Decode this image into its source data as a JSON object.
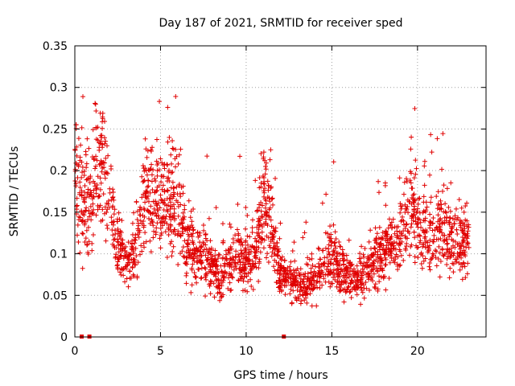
{
  "chart_data": {
    "type": "scatter",
    "title": "Day 187 of 2021, SRMTID for receiver sped",
    "xlabel": "GPS time / hours",
    "ylabel": "SRMTID / TECUs",
    "xlim": [
      0,
      24
    ],
    "ylim": [
      0,
      0.35
    ],
    "x_ticks": [
      0,
      5,
      10,
      15,
      20
    ],
    "x_tick_labels": [
      "0",
      "5",
      "10",
      "15",
      "20"
    ],
    "y_ticks": [
      0,
      0.05,
      0.1,
      0.15,
      0.2,
      0.25,
      0.3,
      0.35
    ],
    "y_tick_labels": [
      "0",
      "0.05",
      "0.1",
      "0.15",
      "0.2",
      "0.25",
      "0.3",
      "0.35"
    ],
    "grid": true,
    "marker": "plus",
    "series_color": "#e00000",
    "trend_hours": [
      0,
      0.5,
      1,
      1.5,
      2,
      2.5,
      3,
      3.5,
      4,
      4.5,
      5,
      5.5,
      6,
      6.5,
      7,
      7.5,
      8,
      8.5,
      9,
      9.5,
      10,
      10.5,
      11,
      11.5,
      12,
      12.5,
      13,
      13.5,
      14,
      14.5,
      15,
      15.5,
      16,
      16.5,
      17,
      17.5,
      18,
      18.5,
      19,
      19.5,
      20,
      20.5,
      21,
      21.5,
      22,
      22.5,
      23
    ],
    "trend_values": [
      0.2,
      0.16,
      0.17,
      0.22,
      0.16,
      0.11,
      0.09,
      0.11,
      0.16,
      0.18,
      0.16,
      0.17,
      0.16,
      0.12,
      0.1,
      0.09,
      0.08,
      0.075,
      0.09,
      0.1,
      0.09,
      0.1,
      0.17,
      0.12,
      0.08,
      0.07,
      0.06,
      0.06,
      0.07,
      0.08,
      0.1,
      0.08,
      0.07,
      0.07,
      0.08,
      0.09,
      0.1,
      0.11,
      0.12,
      0.17,
      0.14,
      0.13,
      0.12,
      0.13,
      0.12,
      0.11,
      0.12
    ],
    "zero_points_hours": [
      0.4,
      0.85,
      12.2
    ]
  }
}
